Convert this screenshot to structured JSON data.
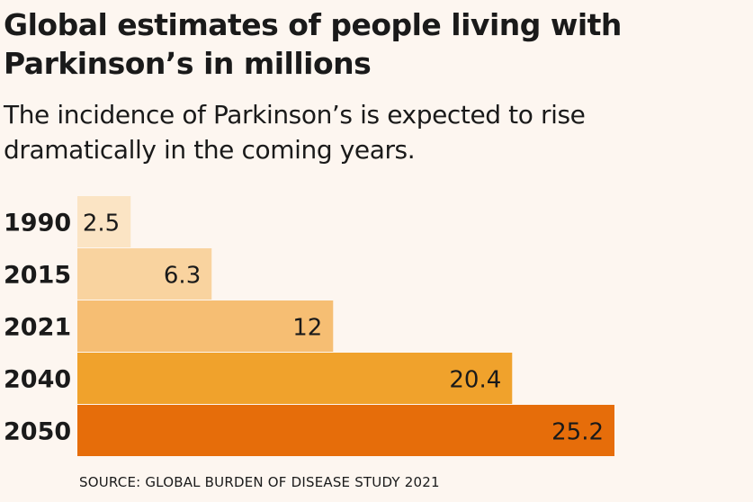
{
  "title": "Global estimates of people living with Parkinson’s in millions",
  "subtitle": "The incidence of Parkinson’s is expected to rise dramatically in the coming years.",
  "source": "SOURCE: GLOBAL BURDEN OF DISEASE STUDY 2021",
  "colors": {
    "background": "#fdf6f0",
    "text": "#1a1a1a",
    "bars": [
      "#fbe4c4",
      "#f9d39f",
      "#f6be73",
      "#f0a22c",
      "#e66d0a"
    ]
  },
  "chart_data": {
    "type": "bar",
    "orientation": "horizontal",
    "categories": [
      "1990",
      "2015",
      "2021",
      "2040",
      "2050"
    ],
    "values": [
      2.5,
      6.3,
      12,
      20.4,
      25.2
    ],
    "value_labels": [
      "2.5",
      "6.3",
      "12",
      "20.4",
      "25.2"
    ],
    "title": "Global estimates of people living with Parkinson’s in millions",
    "xlabel": "",
    "ylabel": "",
    "grid": false,
    "legend": "none"
  }
}
